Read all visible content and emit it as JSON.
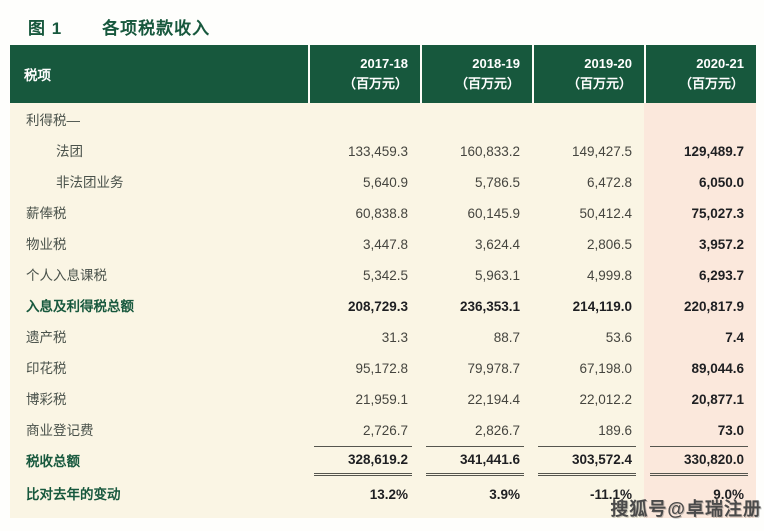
{
  "figure": {
    "tag": "图 1",
    "title": "各项税款收入"
  },
  "table": {
    "header": {
      "label": "税项",
      "columns": [
        {
          "year": "2017-18",
          "unit": "（百万元）"
        },
        {
          "year": "2018-19",
          "unit": "（百万元）"
        },
        {
          "year": "2019-20",
          "unit": "（百万元）"
        },
        {
          "year": "2020-21",
          "unit": "（百万元）"
        }
      ]
    },
    "rows": [
      {
        "label": "利得税—",
        "values": [
          "",
          "",
          "",
          ""
        ]
      },
      {
        "label": "法团",
        "values": [
          "133,459.3",
          "160,833.2",
          "149,427.5",
          "129,489.7"
        ]
      },
      {
        "label": "非法团业务",
        "values": [
          "5,640.9",
          "5,786.5",
          "6,472.8",
          "6,050.0"
        ]
      },
      {
        "label": "薪俸税",
        "values": [
          "60,838.8",
          "60,145.9",
          "50,412.4",
          "75,027.3"
        ]
      },
      {
        "label": "物业税",
        "values": [
          "3,447.8",
          "3,624.4",
          "2,806.5",
          "3,957.2"
        ]
      },
      {
        "label": "个人入息课税",
        "values": [
          "5,342.5",
          "5,963.1",
          "4,999.8",
          "6,293.7"
        ]
      },
      {
        "label": "入息及利得税总额",
        "values": [
          "208,729.3",
          "236,353.1",
          "214,119.0",
          "220,817.9"
        ]
      },
      {
        "label": "遗产税",
        "values": [
          "31.3",
          "88.7",
          "53.6",
          "7.4"
        ]
      },
      {
        "label": "印花税",
        "values": [
          "95,172.8",
          "79,978.7",
          "67,198.0",
          "89,044.6"
        ]
      },
      {
        "label": "博彩税",
        "values": [
          "21,959.1",
          "22,194.4",
          "22,012.2",
          "20,877.1"
        ]
      },
      {
        "label": "商业登记费",
        "values": [
          "2,726.7",
          "2,826.7",
          "189.6",
          "73.0"
        ]
      },
      {
        "label": "税收总额",
        "values": [
          "328,619.2",
          "341,441.6",
          "303,572.4",
          "330,820.0"
        ]
      },
      {
        "label": "比对去年的变动",
        "values": [
          "13.2%",
          "3.9%",
          "-11.1%",
          "9.0%"
        ]
      }
    ]
  },
  "watermark": {
    "text": "搜狐号@卓瑞注册"
  },
  "colors": {
    "header_green": "#17583d",
    "body_cream": "#faf5e4",
    "highlight_pink": "#fbe8dc",
    "accent_green": "#17583d"
  }
}
